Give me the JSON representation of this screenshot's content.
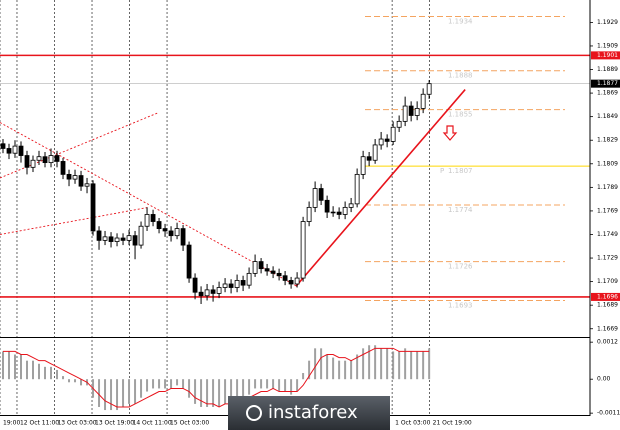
{
  "chart_data": {
    "type": "candlestick",
    "open": [
      1.1826,
      1.1822,
      1.1818,
      1.1824,
      1.1816,
      1.1806,
      1.1812,
      1.1815,
      1.181,
      1.1816,
      1.1811,
      1.18,
      1.1796,
      1.1799,
      1.179,
      1.1792,
      1.1752,
      1.1744,
      1.1747,
      1.1743,
      1.1746,
      1.1744,
      1.1748,
      1.174,
      1.1756,
      1.1766,
      1.176,
      1.1754,
      1.1752,
      1.1748,
      1.1754,
      1.174,
      1.1712,
      1.17,
      1.1697,
      1.1702,
      1.1699,
      1.1704,
      1.1707,
      1.1704,
      1.171,
      1.1706,
      1.1716,
      1.1726,
      1.172,
      1.1718,
      1.1716,
      1.1714,
      1.171,
      1.1707,
      1.1712,
      1.176,
      1.1772,
      1.1788,
      1.1778,
      1.1768,
      1.1768,
      1.1766,
      1.1772,
      1.1775,
      1.18,
      1.1815,
      1.1812,
      1.1825,
      1.183,
      1.1828,
      1.184,
      1.1845,
      1.1858,
      1.185,
      1.1856,
      1.1868
    ],
    "high": [
      1.183,
      1.1826,
      1.1829,
      1.1828,
      1.182,
      1.1816,
      1.182,
      1.1819,
      1.1822,
      1.182,
      1.1814,
      1.1804,
      1.1804,
      1.1803,
      1.1797,
      1.1795,
      1.1756,
      1.1752,
      1.1751,
      1.175,
      1.175,
      1.1753,
      1.1752,
      1.176,
      1.1772,
      1.177,
      1.1763,
      1.1758,
      1.1756,
      1.1759,
      1.1757,
      1.1743,
      1.1716,
      1.1705,
      1.1707,
      1.1706,
      1.1709,
      1.1712,
      1.1711,
      1.1715,
      1.1714,
      1.1721,
      1.1732,
      1.1729,
      1.1724,
      1.1722,
      1.172,
      1.1718,
      1.1713,
      1.1717,
      1.1764,
      1.1777,
      1.1794,
      1.1792,
      1.1782,
      1.1773,
      1.1772,
      1.1777,
      1.178,
      1.1805,
      1.182,
      1.1819,
      1.183,
      1.1836,
      1.1834,
      1.1845,
      1.185,
      1.1866,
      1.1862,
      1.1862,
      1.1873,
      1.188
    ],
    "low": [
      1.1818,
      1.1813,
      1.1814,
      1.181,
      1.18,
      1.1802,
      1.1808,
      1.1806,
      1.1806,
      1.1806,
      1.1796,
      1.179,
      1.1792,
      1.1786,
      1.1784,
      1.1748,
      1.1736,
      1.174,
      1.1738,
      1.1739,
      1.174,
      1.174,
      1.1728,
      1.1737,
      1.1752,
      1.1756,
      1.175,
      1.1747,
      1.1743,
      1.1745,
      1.1735,
      1.1708,
      1.1694,
      1.169,
      1.1693,
      1.1692,
      1.1695,
      1.17,
      1.1699,
      1.17,
      1.1701,
      1.1703,
      1.1713,
      1.1716,
      1.1714,
      1.1712,
      1.171,
      1.1706,
      1.1703,
      1.1704,
      1.1709,
      1.1756,
      1.1768,
      1.1774,
      1.1763,
      1.1764,
      1.1762,
      1.1762,
      1.1768,
      1.1772,
      1.1796,
      1.1807,
      1.1809,
      1.1821,
      1.1823,
      1.1825,
      1.1836,
      1.1841,
      1.1845,
      1.1846,
      1.1852,
      1.1864
    ],
    "close": [
      1.1822,
      1.1818,
      1.1824,
      1.1816,
      1.1806,
      1.1812,
      1.1815,
      1.181,
      1.1816,
      1.1811,
      1.18,
      1.1796,
      1.1799,
      1.179,
      1.1792,
      1.1752,
      1.1744,
      1.1747,
      1.1743,
      1.1746,
      1.1744,
      1.1748,
      1.174,
      1.1756,
      1.1766,
      1.176,
      1.1754,
      1.1752,
      1.1748,
      1.1754,
      1.174,
      1.1712,
      1.17,
      1.1697,
      1.1702,
      1.1699,
      1.1704,
      1.1707,
      1.1704,
      1.171,
      1.1706,
      1.1716,
      1.1726,
      1.172,
      1.1718,
      1.1716,
      1.1714,
      1.171,
      1.1707,
      1.1712,
      1.176,
      1.1772,
      1.1788,
      1.1778,
      1.1768,
      1.1768,
      1.1766,
      1.1772,
      1.1775,
      1.18,
      1.1815,
      1.1812,
      1.1825,
      1.183,
      1.1828,
      1.184,
      1.1845,
      1.1858,
      1.185,
      1.1856,
      1.1868,
      1.1877
    ],
    "xlim": [
      -0.5,
      97.8
    ],
    "xticks": [
      {
        "value": -0.5,
        "label": "19:00"
      },
      {
        "value": 2.33,
        "label": "12 Oct 11:00"
      },
      {
        "value": 8.58,
        "label": "13 Oct 03:00"
      },
      {
        "value": 14.83,
        "label": "13 Oct 19:00"
      },
      {
        "value": 21.08,
        "label": "14 Oct 11:00"
      },
      {
        "value": 27.33,
        "label": "15 Oct 03:00"
      },
      {
        "value": 64.83,
        "label": "1 Oct 03:00"
      },
      {
        "value": 71.08,
        "label": "21 Oct 19:00"
      }
    ],
    "ylim": [
      1.1662,
      1.1948
    ],
    "yticks": [
      1.1929,
      1.1909,
      1.1889,
      1.1869,
      1.1849,
      1.1829,
      1.1809,
      1.1789,
      1.1769,
      1.1749,
      1.1729,
      1.1709,
      1.1689,
      1.1669
    ],
    "grid": true,
    "levels": [
      1.1901,
      1.1696
    ],
    "level_color": "#e8141c",
    "fib_levels": [
      1.1934,
      1.1888,
      1.1855,
      1.1774,
      1.1726,
      1.1693
    ],
    "fib_color": "#f4a460",
    "pivot": 1.1807,
    "pivot_label": "P",
    "pivot_color": "#ffd700",
    "trendlines": [
      {
        "x": [
          48.8,
          77
        ],
        "y": [
          1.1705,
          1.1872
        ],
        "style": "solid"
      },
      {
        "x": [
          -0.5,
          49
        ],
        "y": [
          1.1844,
          1.1705
        ],
        "style": "dashed"
      },
      {
        "x": [
          -0.5,
          25.7
        ],
        "y": [
          1.1797,
          1.1852
        ],
        "style": "dashed"
      },
      {
        "x": [
          -0.5,
          24.2
        ],
        "y": [
          1.1749,
          1.1772
        ],
        "style": "dashed"
      }
    ],
    "indicator": {
      "histogram": [
        0.0009,
        0.0009,
        0.0008,
        0.0008,
        0.0006,
        0.0006,
        0.0005,
        0.0004,
        0.0004,
        0.0003,
        0.0001,
        -0.0001,
        -0.0001,
        -0.0002,
        -0.0002,
        -0.0006,
        -0.0009,
        -0.001,
        -0.001,
        -0.001,
        -0.0009,
        -0.0008,
        -0.0008,
        -0.0006,
        -0.0004,
        -0.0003,
        -0.0003,
        -0.0003,
        -0.0003,
        -0.0002,
        -0.0003,
        -0.0006,
        -0.0008,
        -0.0009,
        -0.0009,
        -0.0009,
        -0.0009,
        -0.0008,
        -0.0008,
        -0.0007,
        -0.0007,
        -0.0005,
        -0.0003,
        -0.0003,
        -0.0003,
        -0.0003,
        -0.0004,
        -0.0004,
        -0.0005,
        -0.0004,
        0.0002,
        0.0006,
        0.001,
        0.001,
        0.0008,
        0.0007,
        0.0006,
        0.0006,
        0.0006,
        0.0008,
        0.001,
        0.0011,
        0.0011,
        0.001,
        0.001,
        0.0009,
        0.0009,
        0.001,
        0.0009,
        0.0009,
        0.0009,
        0.001
      ],
      "signal": [
        0.0009,
        0.0009,
        0.0009,
        0.0008,
        0.0008,
        0.0007,
        0.0006,
        0.0006,
        0.0005,
        0.0004,
        0.0003,
        0.0002,
        0.0001,
        0.0,
        -0.0001,
        -0.0003,
        -0.0005,
        -0.0007,
        -0.0008,
        -0.0009,
        -0.0009,
        -0.0009,
        -0.0008,
        -0.0007,
        -0.0006,
        -0.0005,
        -0.0004,
        -0.0004,
        -0.0003,
        -0.0003,
        -0.0003,
        -0.0004,
        -0.0006,
        -0.0007,
        -0.0008,
        -0.0008,
        -0.0009,
        -0.0008,
        -0.0008,
        -0.0008,
        -0.0007,
        -0.0006,
        -0.0005,
        -0.0004,
        -0.0004,
        -0.0003,
        -0.0004,
        -0.0004,
        -0.0004,
        -0.0004,
        -0.0002,
        0.0001,
        0.0004,
        0.0007,
        0.0008,
        0.0008,
        0.0007,
        0.0007,
        0.0006,
        0.0007,
        0.0008,
        0.0009,
        0.001,
        0.001,
        0.001,
        0.001,
        0.0009,
        0.0009,
        0.0009,
        0.0009,
        0.0009,
        0.0009
      ],
      "histogram_color": "#a0a0a0",
      "signal_color": "#e8141c",
      "ylim": [
        -0.00116,
        0.00127
      ],
      "yticks": [
        0.0012,
        {
          "value": 0,
          "label": "0.00"
        },
        -0.0011
      ]
    },
    "watermark": "instaforex"
  }
}
